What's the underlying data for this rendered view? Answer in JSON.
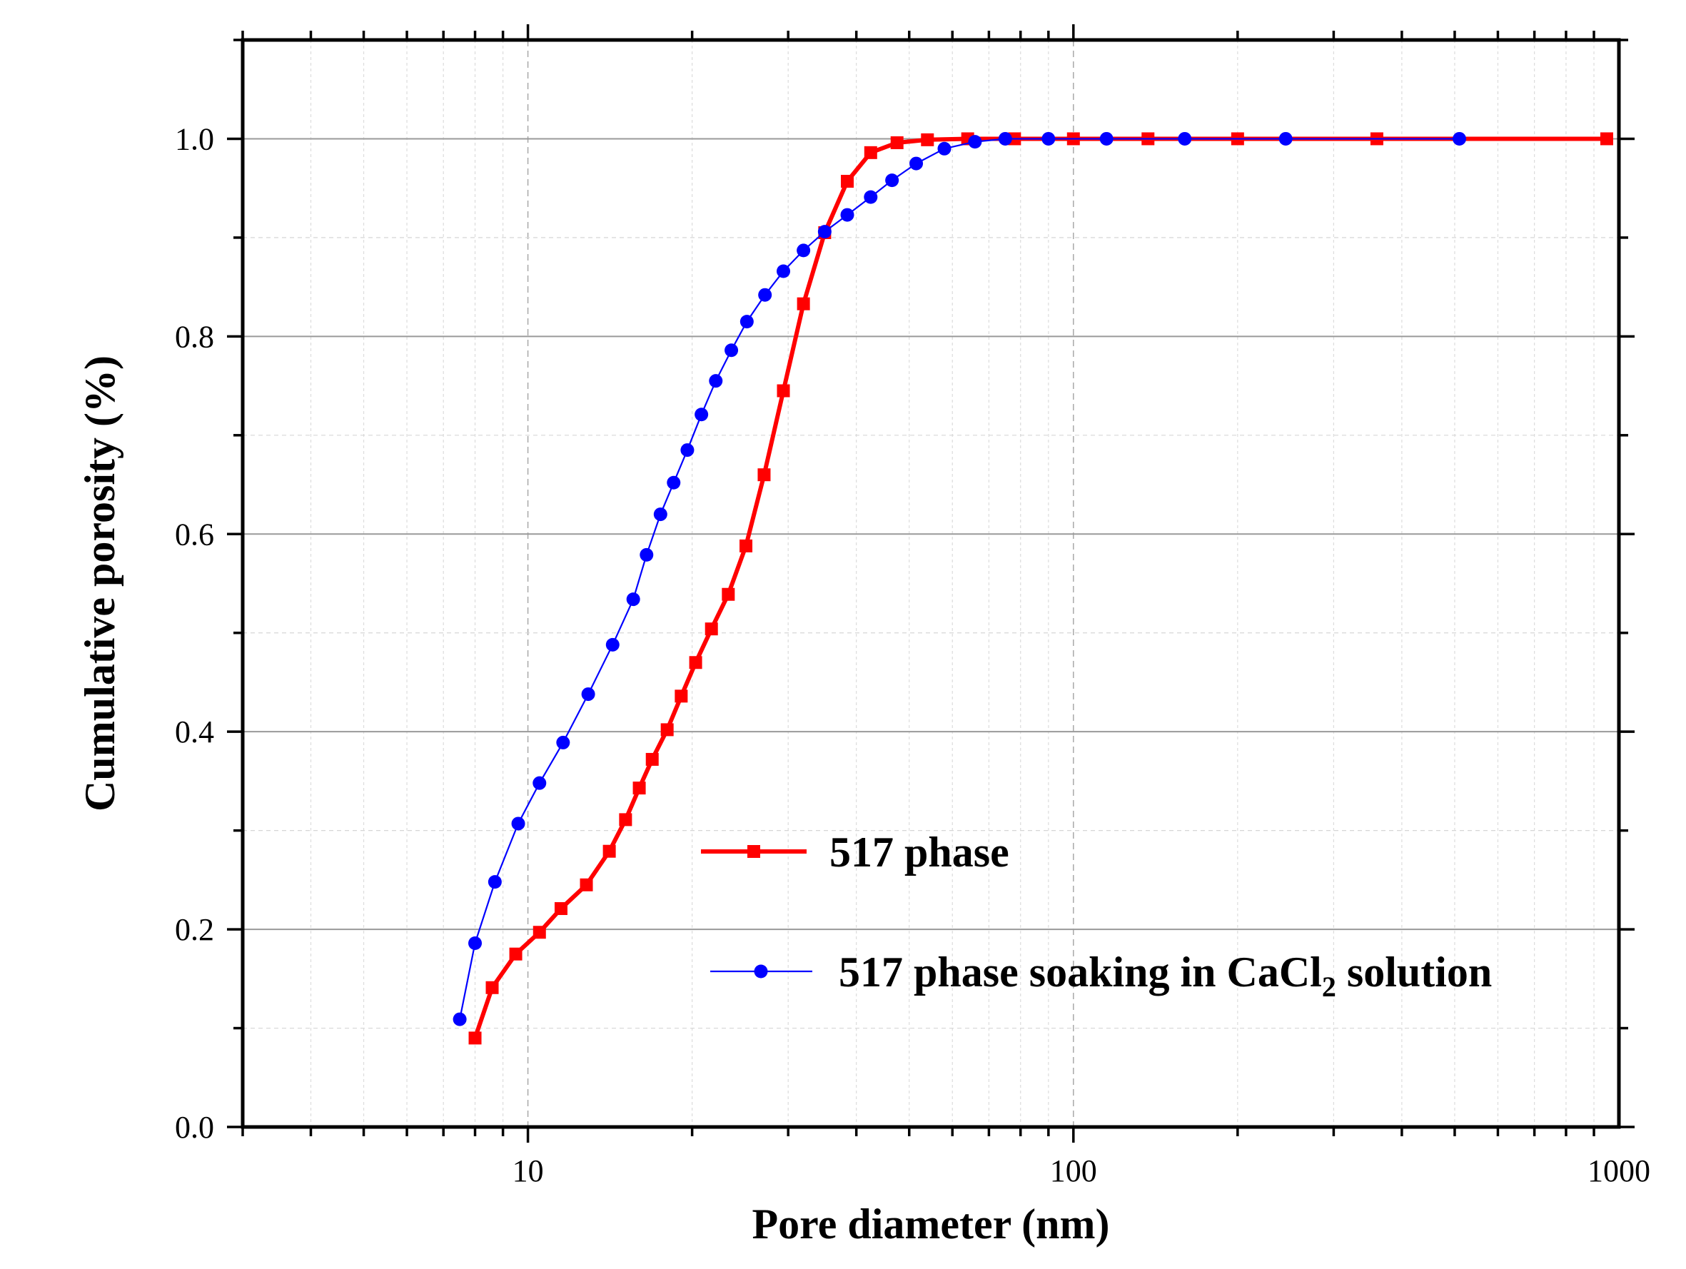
{
  "chart_data": {
    "type": "line",
    "title": "",
    "xlabel": "Pore diameter (nm)",
    "ylabel": "Cumulative porosity (%)",
    "xscale": "log",
    "xlim": [
      3,
      1000
    ],
    "ylim": [
      0,
      1.1
    ],
    "x_ticks": [
      {
        "value": 10,
        "label": "10"
      },
      {
        "value": 100,
        "label": "100"
      },
      {
        "value": 1000,
        "label": "1000"
      }
    ],
    "y_ticks": [
      {
        "value": 0,
        "label": "0.0"
      },
      {
        "value": 0.2,
        "label": "0.2"
      },
      {
        "value": 0.4,
        "label": "0.4"
      },
      {
        "value": 0.6,
        "label": "0.6"
      },
      {
        "value": 0.8,
        "label": "0.8"
      },
      {
        "value": 1.0,
        "label": "1.0"
      }
    ],
    "grid": true,
    "legend_position": "center-right",
    "series": [
      {
        "name": "517 phase",
        "color": "#ff0000",
        "marker": "square",
        "x": [
          8.0,
          8.6,
          9.5,
          10.5,
          11.5,
          12.8,
          14.1,
          15.1,
          16.0,
          16.9,
          18.0,
          19.1,
          20.3,
          21.7,
          23.3,
          25.1,
          27.1,
          29.4,
          32.0,
          35.0,
          38.5,
          42.5,
          47.5,
          54.0,
          64.0,
          78.0,
          100,
          137,
          200,
          360,
          950
        ],
        "y": [
          0.09,
          0.141,
          0.175,
          0.197,
          0.221,
          0.245,
          0.279,
          0.311,
          0.343,
          0.372,
          0.402,
          0.436,
          0.47,
          0.504,
          0.539,
          0.588,
          0.66,
          0.745,
          0.833,
          0.905,
          0.957,
          0.986,
          0.996,
          0.999,
          1.0,
          1.0,
          1.0,
          1.0,
          1.0,
          1.0,
          1.0
        ]
      },
      {
        "name": "517 phase soaking in CaCl2 solution",
        "color": "#0000ff",
        "marker": "circle",
        "x": [
          7.5,
          8.0,
          8.7,
          9.6,
          10.5,
          11.6,
          12.9,
          14.3,
          15.6,
          16.5,
          17.5,
          18.5,
          19.6,
          20.8,
          22.1,
          23.6,
          25.2,
          27.2,
          29.4,
          32.0,
          35.0,
          38.5,
          42.5,
          46.5,
          51.5,
          58.0,
          66.0,
          75.0,
          90.0,
          115,
          160,
          245,
          510
        ],
        "y": [
          0.109,
          0.186,
          0.248,
          0.307,
          0.348,
          0.389,
          0.438,
          0.488,
          0.534,
          0.579,
          0.62,
          0.652,
          0.685,
          0.721,
          0.755,
          0.786,
          0.815,
          0.842,
          0.866,
          0.887,
          0.906,
          0.923,
          0.941,
          0.958,
          0.975,
          0.99,
          0.997,
          1.0,
          1.0,
          1.0,
          1.0,
          1.0,
          1.0
        ]
      }
    ],
    "legend": [
      {
        "text": "517 phase"
      },
      {
        "text_main": "517 phase soaking in CaCl",
        "text_sub": "2",
        "text_tail": " solution"
      }
    ]
  }
}
